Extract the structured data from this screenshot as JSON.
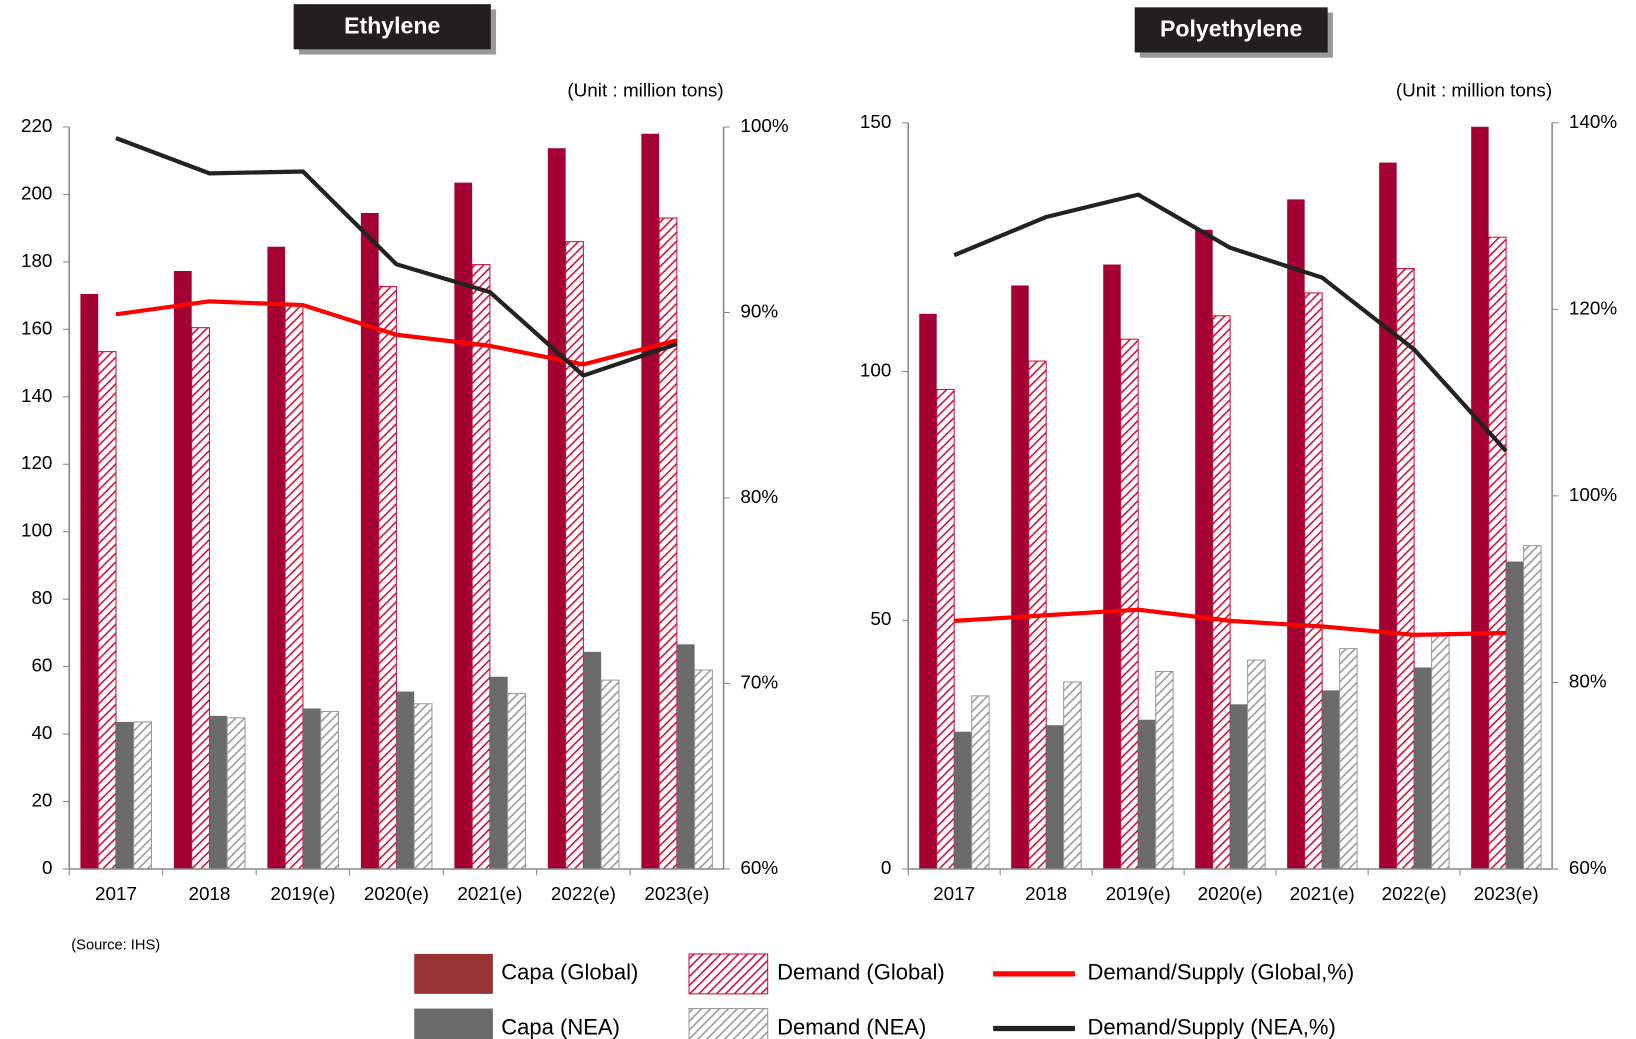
{
  "chart_data": [
    {
      "type": "bar",
      "title": "Ethylene",
      "subtitle": "(Unit : million tons)",
      "categories": [
        "2017",
        "2018",
        "2019(e)",
        "2020(e)",
        "2021(e)",
        "2022(e)",
        "2023(e)"
      ],
      "ylim": [
        0,
        220
      ],
      "yticks": [
        0,
        20,
        40,
        60,
        80,
        100,
        120,
        140,
        160,
        180,
        200,
        220
      ],
      "y2lim": [
        60,
        100
      ],
      "y2ticks": [
        {
          "value": 60,
          "label": "60%"
        },
        {
          "value": 70,
          "label": "70%"
        },
        {
          "value": 80,
          "label": "80%"
        },
        {
          "value": 90,
          "label": "90%"
        },
        {
          "value": 100,
          "label": "100%"
        }
      ],
      "series": [
        {
          "name": "Capa (Global)",
          "type": "bar",
          "color": "#a50034",
          "values": [
            170.5,
            177.3,
            184.5,
            194.5,
            203.5,
            213.7,
            218
          ]
        },
        {
          "name": "Demand (Global)",
          "type": "bar",
          "hatched": true,
          "color": "#d0103a",
          "values": [
            153.4,
            160.5,
            167,
            172.7,
            179.2,
            186,
            193
          ]
        },
        {
          "name": "Capa (NEA)",
          "type": "bar",
          "color": "#6b6b6b",
          "values": [
            43.6,
            45.4,
            47.6,
            52.6,
            57,
            64.4,
            66.6
          ]
        },
        {
          "name": "Demand (NEA)",
          "type": "bar",
          "hatched": true,
          "color": "#9a9a9a",
          "values": [
            43.6,
            44.8,
            46.7,
            49,
            52,
            56,
            59
          ]
        },
        {
          "name": "Demand/Supply (Global,%)",
          "type": "line",
          "axis": "y2",
          "color": "#ff0000",
          "values": [
            89.9,
            90.6,
            90.4,
            88.8,
            88.2,
            87.2,
            88.5
          ]
        },
        {
          "name": "Demand/Supply (NEA,%)",
          "type": "line",
          "axis": "y2",
          "color": "#222222",
          "values": [
            99.4,
            97.5,
            97.6,
            92.6,
            91.1,
            86.6,
            88.3
          ]
        }
      ]
    },
    {
      "type": "bar",
      "title": "Polyethylene",
      "subtitle": "(Unit : million tons)",
      "categories": [
        "2017",
        "2018",
        "2019(e)",
        "2020(e)",
        "2021(e)",
        "2022(e)",
        "2023(e)"
      ],
      "ylim": [
        0,
        150
      ],
      "yticks": [
        0,
        50,
        100,
        150
      ],
      "y2lim": [
        60,
        140
      ],
      "y2ticks": [
        {
          "value": 60,
          "label": "60%"
        },
        {
          "value": 80,
          "label": "80%"
        },
        {
          "value": 100,
          "label": "100%"
        },
        {
          "value": 120,
          "label": "120%"
        },
        {
          "value": 140,
          "label": "140%"
        }
      ],
      "series": [
        {
          "name": "Capa (Global)",
          "type": "bar",
          "color": "#a50034",
          "values": [
            111.6,
            117.3,
            121.5,
            128.5,
            134.6,
            142,
            149.2
          ]
        },
        {
          "name": "Demand (Global)",
          "type": "bar",
          "hatched": true,
          "color": "#d0103a",
          "values": [
            96.4,
            102.1,
            106.5,
            111.2,
            115.8,
            120.7,
            127
          ]
        },
        {
          "name": "Capa (NEA)",
          "type": "bar",
          "color": "#6b6b6b",
          "values": [
            27.6,
            28.9,
            30,
            33.1,
            35.9,
            40.5,
            61.8
          ]
        },
        {
          "name": "Demand (NEA)",
          "type": "bar",
          "hatched": true,
          "color": "#9a9a9a",
          "values": [
            34.8,
            37.6,
            39.7,
            42,
            44.3,
            46.8,
            65
          ]
        },
        {
          "name": "Demand/Supply (Global,%)",
          "type": "line",
          "axis": "y2",
          "color": "#ff0000",
          "values": [
            86.6,
            87.2,
            87.8,
            86.6,
            86,
            85.1,
            85.3
          ]
        },
        {
          "name": "Demand/Supply (NEA,%)",
          "type": "line",
          "axis": "y2",
          "color": "#222222",
          "values": [
            125.8,
            129.9,
            132.3,
            126.6,
            123.4,
            115.7,
            104.8
          ]
        }
      ]
    }
  ],
  "source": "(Source: IHS)"
}
